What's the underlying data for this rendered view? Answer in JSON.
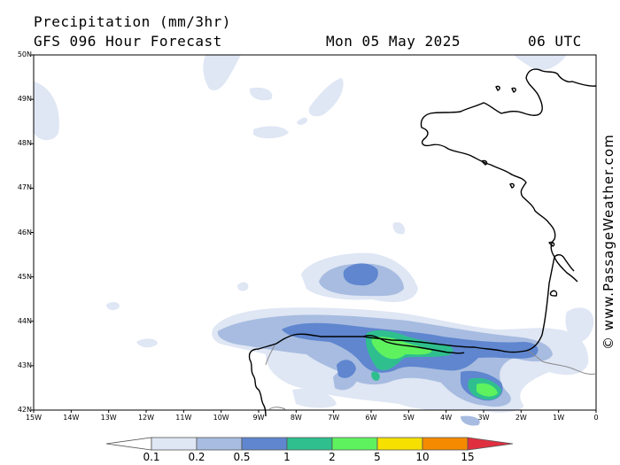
{
  "header": {
    "title": "Precipitation (mm/3hr)",
    "model": "GFS 096 Hour Forecast",
    "date": "Mon 05 May 2025",
    "time": "06 UTC"
  },
  "map": {
    "lat_labels": [
      "50N",
      "49N",
      "48N",
      "47N",
      "46N",
      "45N",
      "44N",
      "43N",
      "42N"
    ],
    "lon_labels": [
      "15W",
      "14W",
      "13W",
      "12W",
      "11W",
      "10W",
      "9W",
      "8W",
      "7W",
      "6W",
      "5W",
      "4W",
      "3W",
      "2W",
      "1W",
      "0"
    ],
    "coastline_color": "#000000",
    "land_border_color": "#8a8a8a"
  },
  "legend": {
    "labels": [
      "0.1",
      "0.2",
      "0.5",
      "1",
      "2",
      "5",
      "10",
      "15"
    ],
    "colors": [
      "#ffffff",
      "#dfe6f4",
      "#a7bce0",
      "#5f86cf",
      "#2fbf8f",
      "#5ff25f",
      "#f5e000",
      "#f58a00",
      "#e03040"
    ]
  },
  "credit": "© www.PassageWeather.com"
}
